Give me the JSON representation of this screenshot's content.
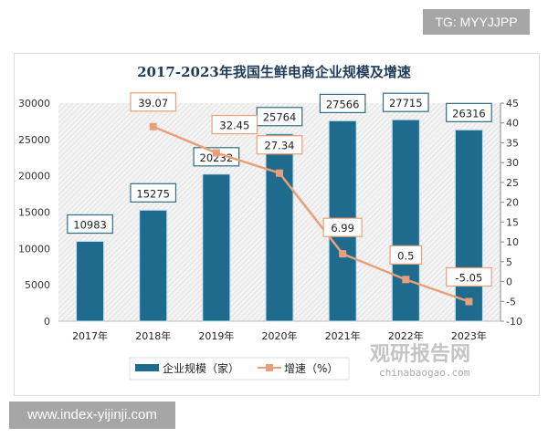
{
  "tg_label": "TG: MYYJJPP",
  "footer_url": "www.index-yijinji.com",
  "watermark": {
    "cn": "观研报告网",
    "en": "chinabaogao.com"
  },
  "chart_data": {
    "type": "bar+line",
    "title": "2017-2023年我国生鲜电商企业规模及增速",
    "categories": [
      "2017年",
      "2018年",
      "2019年",
      "2020年",
      "2021年",
      "2022年",
      "2023年"
    ],
    "series": [
      {
        "name": "企业规模（家）",
        "type": "bar",
        "axis": "left",
        "color": "#1f6b8e",
        "values": [
          10983,
          15275,
          20232,
          25764,
          27566,
          27715,
          26316
        ],
        "labels": [
          "10983",
          "15275",
          "20232",
          "25764",
          "27566",
          "27715",
          "26316"
        ]
      },
      {
        "name": "增速（%）",
        "type": "line",
        "axis": "right",
        "color": "#e8a07a",
        "values": [
          null,
          39.07,
          32.45,
          27.34,
          6.99,
          0.5,
          -5.05
        ],
        "labels": [
          "",
          "39.07",
          "32.45",
          "27.34",
          "6.99",
          "0.5",
          "-5.05"
        ]
      }
    ],
    "y_left": {
      "range": [
        0,
        30000
      ],
      "ticks": [
        "0",
        "5000",
        "10000",
        "15000",
        "20000",
        "25000",
        "30000"
      ]
    },
    "y_right": {
      "range": [
        -10,
        45
      ],
      "ticks": [
        "-10",
        "-5",
        "0",
        "5",
        "10",
        "15",
        "20",
        "25",
        "30",
        "35",
        "40",
        "45"
      ]
    },
    "legend": "bottom",
    "grid": false
  }
}
